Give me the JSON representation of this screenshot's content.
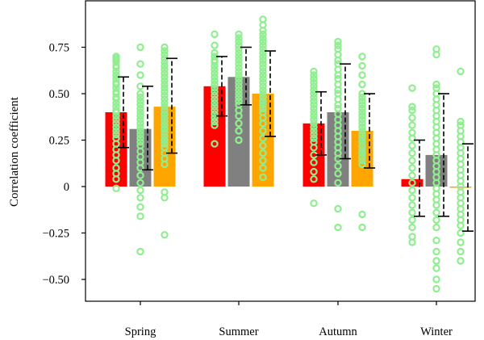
{
  "chart_data": {
    "type": "bar",
    "title": "",
    "xlabel": "",
    "ylabel": "Correlation coefficient",
    "ylim": [
      -0.62,
      0.94
    ],
    "categories": [
      "Spring",
      "Summer",
      "Autumn",
      "Winter"
    ],
    "yticks": [
      {
        "value": 0.75,
        "label": "0.75"
      },
      {
        "value": 0.5,
        "label": "0.50"
      },
      {
        "value": 0.25,
        "label": "0.25"
      },
      {
        "value": 0,
        "label": "0"
      },
      {
        "value": -0.25,
        "label": "−0.25"
      },
      {
        "value": -0.5,
        "label": "−0.50"
      }
    ],
    "grid": false,
    "legend": "none",
    "series": [
      {
        "color": "#ff0000",
        "values": [
          0.4,
          0.54,
          0.34,
          0.04
        ],
        "err_low": [
          0.21,
          0.38,
          0.17,
          -0.16
        ],
        "err_high": [
          0.59,
          0.7,
          0.51,
          0.25
        ],
        "points": [
          [
            0.7,
            0.69,
            0.68,
            0.67,
            0.65,
            0.64,
            0.62,
            0.6,
            0.58,
            0.56,
            0.55,
            0.53,
            0.51,
            0.5,
            0.48,
            0.47,
            0.45,
            0.43,
            0.41,
            0.4,
            0.38,
            0.36,
            0.34,
            0.32,
            0.3,
            0.28,
            0.26,
            0.23,
            0.2,
            0.17,
            0.14,
            0.1,
            0.07,
            0.04,
            -0.01
          ],
          [
            0.82,
            0.76,
            0.72,
            0.7,
            0.68,
            0.67,
            0.65,
            0.63,
            0.61,
            0.59,
            0.57,
            0.55,
            0.53,
            0.51,
            0.49,
            0.47,
            0.45,
            0.43,
            0.41,
            0.39,
            0.37,
            0.35,
            0.33,
            0.23
          ],
          [
            0.62,
            0.6,
            0.58,
            0.56,
            0.54,
            0.52,
            0.5,
            0.48,
            0.46,
            0.44,
            0.42,
            0.4,
            0.38,
            0.36,
            0.34,
            0.32,
            0.3,
            0.28,
            0.26,
            0.24,
            0.21,
            0.17,
            0.13,
            0.08,
            0.04,
            -0.09
          ],
          [
            0.53,
            0.43,
            0.41,
            0.37,
            0.33,
            0.29,
            0.26,
            0.22,
            0.18,
            0.14,
            0.1,
            0.06,
            0.02,
            -0.02,
            -0.06,
            -0.1,
            -0.14,
            -0.18,
            -0.22,
            -0.27,
            -0.3
          ]
        ]
      },
      {
        "color": "#808080",
        "values": [
          0.31,
          0.59,
          0.4,
          0.17
        ],
        "err_low": [
          0.09,
          0.44,
          0.15,
          -0.16
        ],
        "err_high": [
          0.54,
          0.75,
          0.66,
          0.5
        ],
        "points": [
          [
            0.75,
            0.66,
            0.6,
            0.54,
            0.5,
            0.48,
            0.46,
            0.44,
            0.42,
            0.4,
            0.38,
            0.36,
            0.34,
            0.32,
            0.3,
            0.28,
            0.26,
            0.24,
            0.22,
            0.19,
            0.16,
            0.13,
            0.1,
            0.06,
            0.02,
            -0.02,
            -0.06,
            -0.11,
            -0.16,
            -0.35
          ],
          [
            0.82,
            0.8,
            0.78,
            0.76,
            0.74,
            0.72,
            0.7,
            0.68,
            0.66,
            0.64,
            0.62,
            0.6,
            0.58,
            0.56,
            0.54,
            0.52,
            0.5,
            0.48,
            0.46,
            0.44,
            0.41,
            0.38,
            0.34,
            0.3,
            0.25
          ],
          [
            0.78,
            0.76,
            0.74,
            0.71,
            0.68,
            0.66,
            0.63,
            0.6,
            0.58,
            0.55,
            0.52,
            0.5,
            0.47,
            0.44,
            0.42,
            0.39,
            0.36,
            0.33,
            0.3,
            0.27,
            0.24,
            0.21,
            0.18,
            0.15,
            0.11,
            0.07,
            0.02,
            -0.12,
            -0.22
          ],
          [
            0.74,
            0.71,
            0.55,
            0.53,
            0.5,
            0.47,
            0.44,
            0.41,
            0.38,
            0.35,
            0.32,
            0.29,
            0.26,
            0.23,
            0.2,
            0.17,
            0.14,
            0.11,
            0.08,
            0.05,
            0.02,
            -0.01,
            -0.04,
            -0.07,
            -0.1,
            -0.14,
            -0.18,
            -0.22,
            -0.29,
            -0.35,
            -0.4,
            -0.44,
            -0.5,
            -0.55
          ]
        ]
      },
      {
        "color": "#ffa500",
        "values": [
          0.43,
          0.5,
          0.3,
          -0.005
        ],
        "err_low": [
          0.18,
          0.27,
          0.1,
          -0.24
        ],
        "err_high": [
          0.69,
          0.73,
          0.5,
          0.23
        ],
        "points": [
          [
            0.75,
            0.73,
            0.71,
            0.69,
            0.67,
            0.65,
            0.63,
            0.61,
            0.59,
            0.57,
            0.55,
            0.53,
            0.51,
            0.49,
            0.47,
            0.45,
            0.43,
            0.41,
            0.39,
            0.37,
            0.35,
            0.33,
            0.31,
            0.29,
            0.27,
            0.25,
            0.23,
            0.21,
            0.18,
            0.15,
            0.12,
            -0.03,
            -0.06,
            -0.26
          ],
          [
            0.9,
            0.87,
            0.84,
            0.82,
            0.8,
            0.78,
            0.76,
            0.74,
            0.72,
            0.7,
            0.68,
            0.66,
            0.64,
            0.62,
            0.6,
            0.58,
            0.56,
            0.54,
            0.52,
            0.5,
            0.48,
            0.46,
            0.44,
            0.42,
            0.4,
            0.37,
            0.34,
            0.3,
            0.26,
            0.22,
            0.18,
            0.14,
            0.1,
            0.05
          ],
          [
            0.7,
            0.65,
            0.6,
            0.55,
            0.5,
            0.48,
            0.46,
            0.44,
            0.42,
            0.4,
            0.38,
            0.36,
            0.34,
            0.32,
            0.3,
            0.28,
            0.26,
            0.24,
            0.22,
            0.2,
            0.18,
            0.16,
            0.14,
            0.12,
            -0.15,
            -0.22
          ],
          [
            0.62,
            0.35,
            0.33,
            0.3,
            0.27,
            0.24,
            0.21,
            0.18,
            0.15,
            0.12,
            0.09,
            0.06,
            0.03,
            0.0,
            -0.03,
            -0.06,
            -0.09,
            -0.12,
            -0.15,
            -0.18,
            -0.21,
            -0.25,
            -0.3,
            -0.35,
            -0.4
          ]
        ]
      }
    ]
  },
  "style": {
    "point_color": "#90ee90",
    "errorbar_color": "#000000"
  }
}
